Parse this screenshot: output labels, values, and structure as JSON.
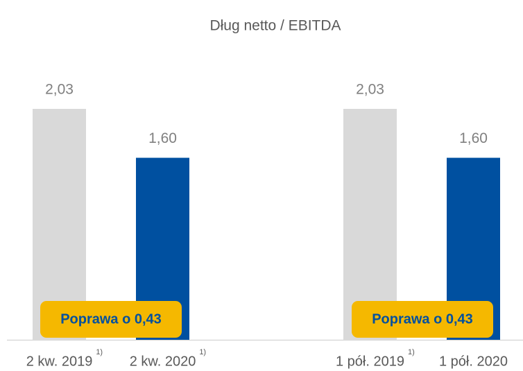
{
  "chart_data": {
    "type": "bar",
    "title": "Dług netto / EBITDA",
    "categories": [
      "2 kw. 2019",
      "2 kw. 2020",
      "1 pół. 2019",
      "1 pół. 2020"
    ],
    "category_notes": [
      "1)",
      "1)",
      "1)",
      null
    ],
    "values": [
      2.03,
      1.6,
      2.03,
      1.6
    ],
    "value_labels": [
      "2,03",
      "1,60",
      "2,03",
      "1,60"
    ],
    "colors": [
      "#d9d9d9",
      "#0050a0",
      "#d9d9d9",
      "#0050a0"
    ],
    "annotations": [
      "Poprawa o 0,43",
      "Poprawa o 0,43"
    ]
  }
}
